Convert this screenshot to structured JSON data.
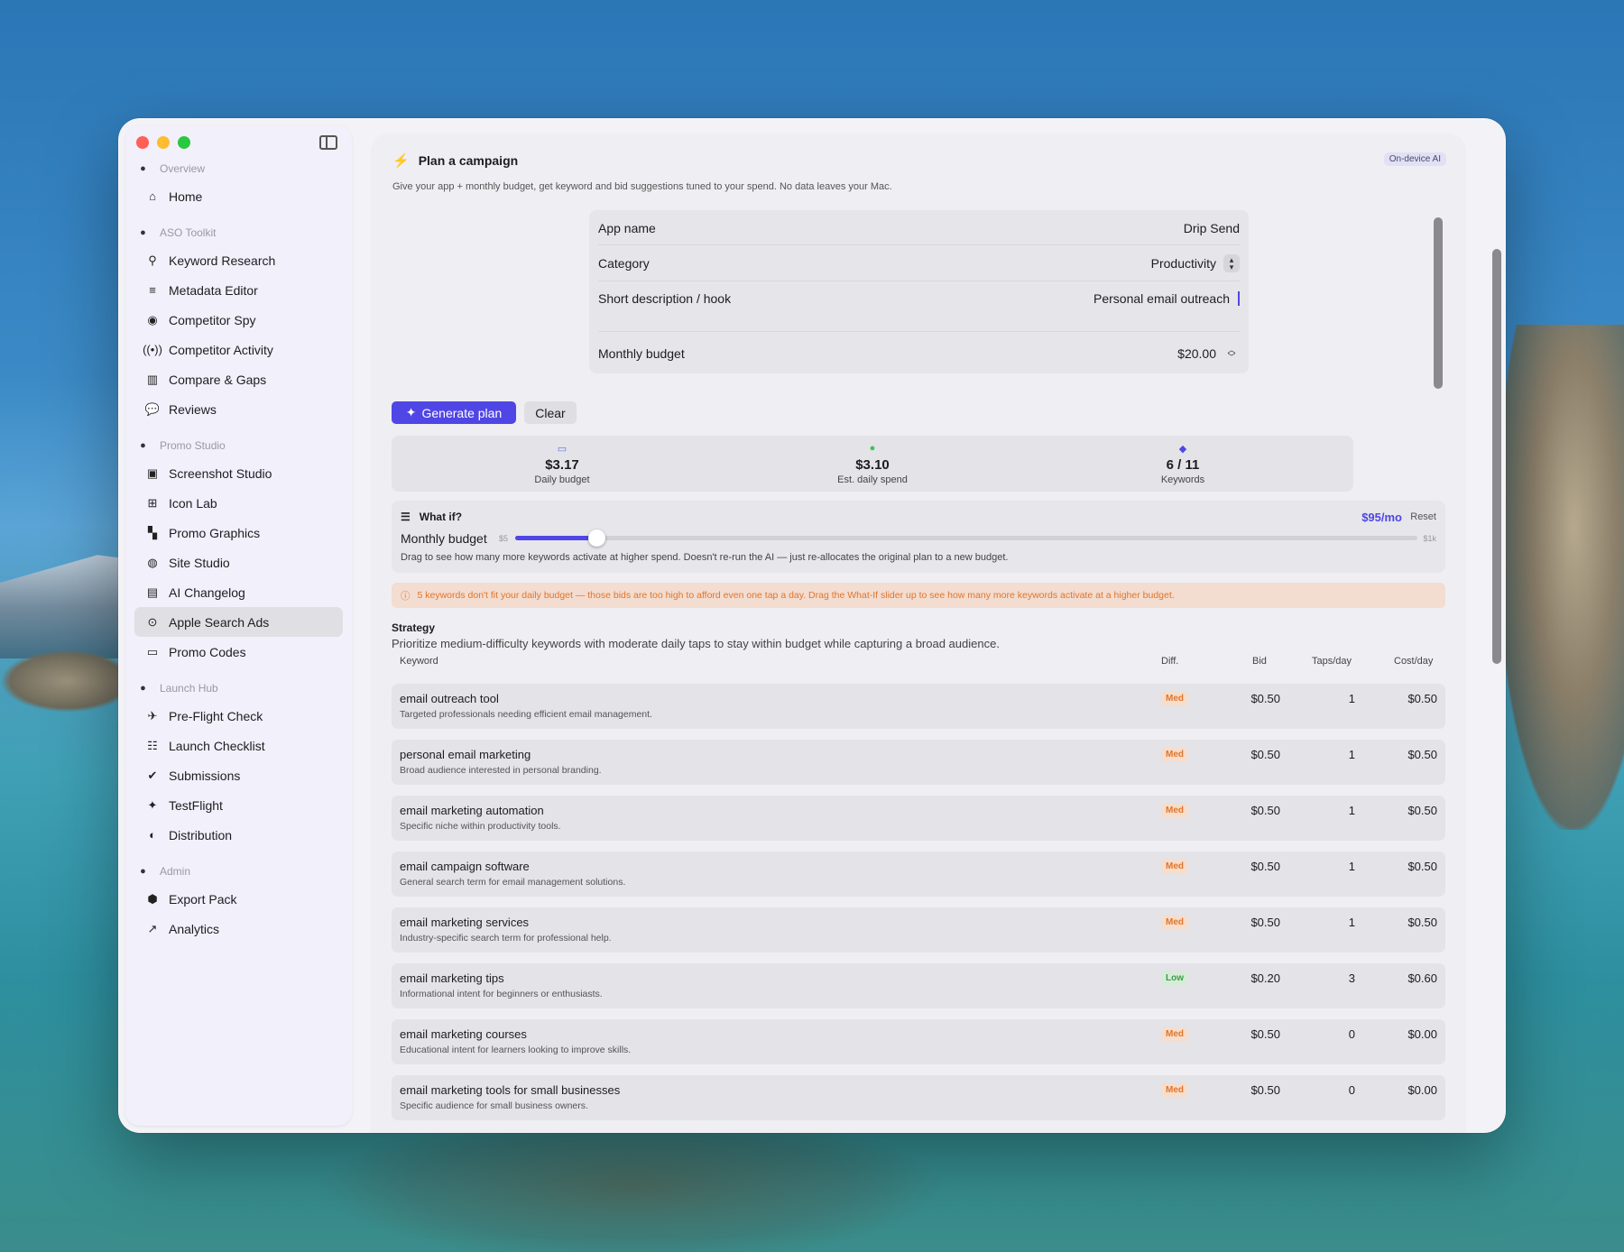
{
  "sidebar": {
    "sections": [
      {
        "title": "Overview",
        "icon": "house-icon",
        "items": [
          {
            "label": "Home",
            "icon": "house-icon",
            "glyph": "⌂"
          }
        ]
      },
      {
        "title": "ASO Toolkit",
        "icon": "magnifier-icon",
        "items": [
          {
            "label": "Keyword Research",
            "icon": "magnifier-icon",
            "glyph": "⚲"
          },
          {
            "label": "Metadata Editor",
            "icon": "text-lines-icon",
            "glyph": "≡"
          },
          {
            "label": "Competitor Spy",
            "icon": "eye-icon",
            "glyph": "◉"
          },
          {
            "label": "Competitor Activity",
            "icon": "antenna-icon",
            "glyph": "((•))"
          },
          {
            "label": "Compare & Gaps",
            "icon": "columns-icon",
            "glyph": "▥"
          },
          {
            "label": "Reviews",
            "icon": "speech-bubbles-icon",
            "glyph": "💬"
          }
        ]
      },
      {
        "title": "Promo Studio",
        "icon": "calendar-icon",
        "items": [
          {
            "label": "Screenshot Studio",
            "icon": "photo-stack-icon",
            "glyph": "▣"
          },
          {
            "label": "Icon Lab",
            "icon": "app-grid-icon",
            "glyph": "⊞"
          },
          {
            "label": "Promo Graphics",
            "icon": "layout-blocks-icon",
            "glyph": "▚"
          },
          {
            "label": "Site Studio",
            "icon": "globe-icon",
            "glyph": "◍"
          },
          {
            "label": "AI Changelog",
            "icon": "document-icon",
            "glyph": "▤"
          },
          {
            "label": "Apple Search Ads",
            "icon": "search-circle-icon",
            "glyph": "⊙",
            "active": true
          },
          {
            "label": "Promo Codes",
            "icon": "ticket-icon",
            "glyph": "▭"
          }
        ]
      },
      {
        "title": "Launch Hub",
        "icon": "rocket-icon",
        "items": [
          {
            "label": "Pre-Flight Check",
            "icon": "airplane-icon",
            "glyph": "✈"
          },
          {
            "label": "Launch Checklist",
            "icon": "checklist-icon",
            "glyph": "☷"
          },
          {
            "label": "Submissions",
            "icon": "seal-check-icon",
            "glyph": "✔"
          },
          {
            "label": "TestFlight",
            "icon": "testflight-icon",
            "glyph": "✦"
          },
          {
            "label": "Distribution",
            "icon": "globe-stand-icon",
            "glyph": "◐"
          }
        ]
      },
      {
        "title": "Admin",
        "icon": "tools-icon",
        "items": [
          {
            "label": "Export Pack",
            "icon": "cube-icon",
            "glyph": "⬢"
          },
          {
            "label": "Analytics",
            "icon": "line-chart-icon",
            "glyph": "↗"
          }
        ]
      }
    ]
  },
  "header": {
    "title": "Plan a campaign",
    "subtitle": "Give your app + monthly budget, get keyword and bid suggestions tuned to your spend. No data leaves your Mac.",
    "badge": "On-device AI"
  },
  "form": {
    "app_name_label": "App name",
    "app_name_value": "Drip Send",
    "category_label": "Category",
    "category_value": "Productivity",
    "hook_label": "Short description / hook",
    "hook_value": "Personal email outreach",
    "budget_label": "Monthly budget",
    "budget_value": "$20.00"
  },
  "actions": {
    "generate": "Generate plan",
    "clear": "Clear"
  },
  "stats": [
    {
      "value": "$3.17",
      "label": "Daily budget",
      "icon": "calendar-icon",
      "glyph": "▭",
      "color": "#5b6ee1"
    },
    {
      "value": "$3.10",
      "label": "Est. daily spend",
      "icon": "checkmark-circle-icon",
      "glyph": "●",
      "color": "#34c759"
    },
    {
      "value": "6 / 11",
      "label": "Keywords",
      "icon": "tag-icon",
      "glyph": "◆",
      "color": "#4f46e5"
    }
  ],
  "whatif": {
    "title": "What if?",
    "value": "$95/mo",
    "reset": "Reset",
    "slider_label": "Monthly budget",
    "min": "$5",
    "max": "$1k",
    "level": 0.09,
    "description": "Drag to see how many more keywords activate at higher spend. Doesn't re-run the AI — just re-allocates the original plan to a new budget."
  },
  "warning": "5 keywords don't fit your daily budget — those bids are too high to afford even one tap a day. Drag the What-If slider up to see how many more keywords activate at a higher budget.",
  "strategy": {
    "title": "Strategy",
    "text": "Prioritize medium-difficulty keywords with moderate daily taps to stay within budget while capturing a broad audience."
  },
  "table": {
    "headers": {
      "keyword": "Keyword",
      "diff": "Diff.",
      "bid": "Bid",
      "taps": "Taps/day",
      "cost": "Cost/day"
    },
    "rows": [
      {
        "keyword": "email outreach tool",
        "desc": "Targeted professionals needing efficient email management.",
        "diff": "Med",
        "bid": "$0.50",
        "taps": "1",
        "cost": "$0.50"
      },
      {
        "keyword": "personal email marketing",
        "desc": "Broad audience interested in personal branding.",
        "diff": "Med",
        "bid": "$0.50",
        "taps": "1",
        "cost": "$0.50"
      },
      {
        "keyword": "email marketing automation",
        "desc": "Specific niche within productivity tools.",
        "diff": "Med",
        "bid": "$0.50",
        "taps": "1",
        "cost": "$0.50"
      },
      {
        "keyword": "email campaign software",
        "desc": "General search term for email management solutions.",
        "diff": "Med",
        "bid": "$0.50",
        "taps": "1",
        "cost": "$0.50"
      },
      {
        "keyword": "email marketing services",
        "desc": "Industry-specific search term for professional help.",
        "diff": "Med",
        "bid": "$0.50",
        "taps": "1",
        "cost": "$0.50"
      },
      {
        "keyword": "email marketing tips",
        "desc": "Informational intent for beginners or enthusiasts.",
        "diff": "Low",
        "bid": "$0.20",
        "taps": "3",
        "cost": "$0.60"
      },
      {
        "keyword": "email marketing courses",
        "desc": "Educational intent for learners looking to improve skills.",
        "diff": "Med",
        "bid": "$0.50",
        "taps": "0",
        "cost": "$0.00"
      },
      {
        "keyword": "email marketing tools for small businesses",
        "desc": "Specific audience for small business owners.",
        "diff": "Med",
        "bid": "$0.50",
        "taps": "0",
        "cost": "$0.00"
      }
    ]
  }
}
